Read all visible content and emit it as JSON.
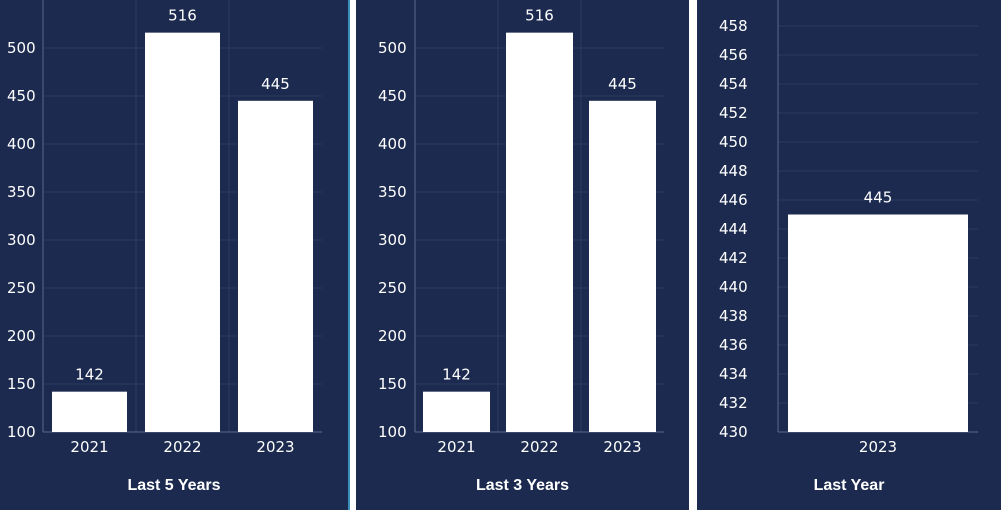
{
  "colors": {
    "panel_bg": "#1b2a4e",
    "bar": "#ffffff",
    "grid": "#2b3c63",
    "axis": "#5a6b90",
    "text": "#ffffff",
    "divider": "#3a8fb7"
  },
  "chart_data": [
    {
      "type": "bar",
      "title": "Last 5 Years",
      "categories": [
        "2021",
        "2022",
        "2023"
      ],
      "values": [
        142,
        516,
        445
      ],
      "ylim": [
        100,
        525
      ],
      "yticks": [
        100,
        150,
        200,
        250,
        300,
        350,
        400,
        450,
        500
      ],
      "data_labels": true,
      "grid": true
    },
    {
      "type": "bar",
      "title": "Last 3 Years",
      "categories": [
        "2021",
        "2022",
        "2023"
      ],
      "values": [
        142,
        516,
        445
      ],
      "ylim": [
        100,
        525
      ],
      "yticks": [
        100,
        150,
        200,
        250,
        300,
        350,
        400,
        450,
        500
      ],
      "data_labels": true,
      "grid": true
    },
    {
      "type": "bar",
      "title": "Last Year",
      "categories": [
        "2023"
      ],
      "values": [
        445
      ],
      "ylim": [
        430,
        460
      ],
      "yticks": [
        430,
        432,
        434,
        436,
        438,
        440,
        442,
        444,
        446,
        448,
        450,
        452,
        454,
        456,
        458
      ],
      "data_labels": true,
      "grid": true
    }
  ]
}
